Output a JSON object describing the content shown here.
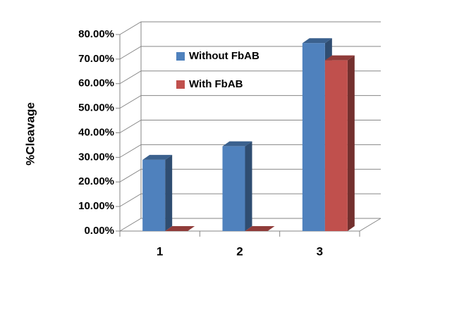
{
  "chart_data": {
    "type": "bar3d",
    "y_label": "%Cleavage",
    "categories": [
      "1",
      "2",
      "3"
    ],
    "series": [
      {
        "name": "Without FbAB",
        "color": "#4f81bd",
        "values": [
          29,
          34.5,
          76.5
        ]
      },
      {
        "name": "With FbAB",
        "color": "#c0504d",
        "values": [
          0,
          0,
          69.5
        ]
      }
    ],
    "ylim": [
      0,
      80
    ],
    "yticks": [
      {
        "value": 0,
        "label": "0.00%"
      },
      {
        "value": 10,
        "label": "10.00%"
      },
      {
        "value": 20,
        "label": "20.00%"
      },
      {
        "value": 30,
        "label": "30.00%"
      },
      {
        "value": 40,
        "label": "40.00%"
      },
      {
        "value": 50,
        "label": "50.00%"
      },
      {
        "value": 60,
        "label": "60.00%"
      },
      {
        "value": 70,
        "label": "70.00%"
      },
      {
        "value": 80,
        "label": "80.00%"
      }
    ],
    "grid": true
  }
}
